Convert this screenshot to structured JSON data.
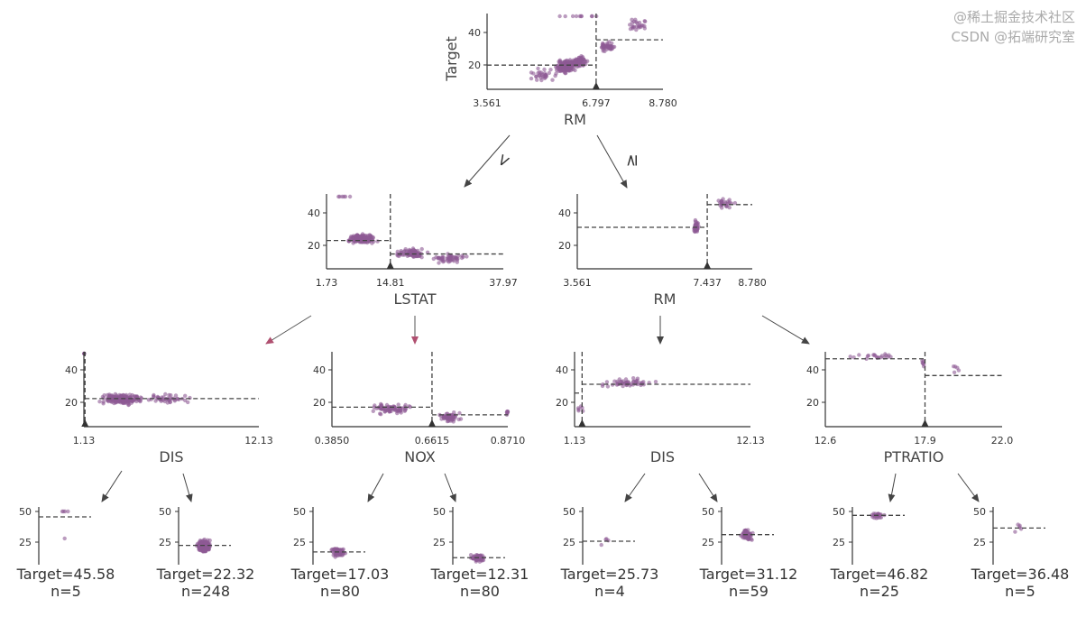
{
  "colors": {
    "points": "#8e5a94",
    "lines": "#444444",
    "arrow_highlight": "#b05070"
  },
  "edge_labels": {
    "left": "<",
    "right": "≥"
  },
  "root": {
    "feature": "RM",
    "ylabel": "Target",
    "xticks": [
      "3.561",
      "6.797",
      "8.780"
    ],
    "yticks": [
      "20",
      "40"
    ],
    "xmin": 3.561,
    "xmax": 8.78,
    "split": 6.797,
    "left_mean": 19.9,
    "right_mean": 35.5
  },
  "level2": [
    {
      "feature": "LSTAT",
      "xticks": [
        "1.73",
        "14.81",
        "37.97"
      ],
      "yticks": [
        "20",
        "40"
      ],
      "xmin": 1.73,
      "xmax": 37.97,
      "split": 14.81,
      "left_mean": 23.0,
      "right_mean": 14.7
    },
    {
      "feature": "RM",
      "xticks": [
        "3.561",
        "7.437",
        "8.780"
      ],
      "yticks": [
        "20",
        "40"
      ],
      "xmin": 3.561,
      "xmax": 8.78,
      "split": 7.437,
      "left_mean": 31.1,
      "right_mean": 45.1
    }
  ],
  "level3": [
    {
      "feature": "DIS",
      "xticks": [
        "1.13",
        "12.13"
      ],
      "yticks": [
        "20",
        "40"
      ],
      "xmin": 1.13,
      "xmax": 12.13,
      "split": 1.2,
      "left_mean": 45.6,
      "right_mean": 22.3
    },
    {
      "feature": "NOX",
      "xticks": [
        "0.3850",
        "0.6615",
        "0.8710"
      ],
      "yticks": [
        "20",
        "40"
      ],
      "xmin": 0.385,
      "xmax": 0.871,
      "split": 0.6615,
      "left_mean": 17.0,
      "right_mean": 12.3
    },
    {
      "feature": "DIS",
      "xticks": [
        "1.13",
        "12.13"
      ],
      "yticks": [
        "20",
        "40"
      ],
      "xmin": 1.13,
      "xmax": 12.13,
      "split": 1.6,
      "left_mean": 25.7,
      "right_mean": 31.1
    },
    {
      "feature": "PTRATIO",
      "xticks": [
        "12.6",
        "17.9",
        "22.0"
      ],
      "yticks": [
        "20",
        "40"
      ],
      "xmin": 12.6,
      "xmax": 22.0,
      "split": 17.9,
      "left_mean": 46.8,
      "right_mean": 36.5
    }
  ],
  "leaves": [
    {
      "label": "Target=45.58",
      "n": "n=5",
      "mean": 45.58
    },
    {
      "label": "Target=22.32",
      "n": "n=248",
      "mean": 22.32
    },
    {
      "label": "Target=17.03",
      "n": "n=80",
      "mean": 17.03
    },
    {
      "label": "Target=12.31",
      "n": "n=80",
      "mean": 12.31
    },
    {
      "label": "Target=25.73",
      "n": "n=4",
      "mean": 25.73
    },
    {
      "label": "Target=31.12",
      "n": "n=59",
      "mean": 31.12
    },
    {
      "label": "Target=46.82",
      "n": "n=25",
      "mean": 46.82
    },
    {
      "label": "Target=36.48",
      "n": "n=5",
      "mean": 36.48
    }
  ],
  "leaf_yticks": [
    "25",
    "50"
  ],
  "watermark": {
    "line1": "@稀土掘金技术社区",
    "line2": "CSDN @拓端研究室"
  }
}
